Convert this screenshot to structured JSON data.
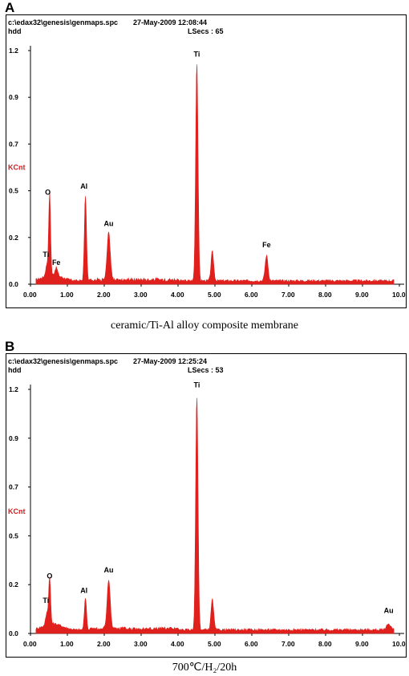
{
  "chart_data": [
    {
      "panel": "A",
      "type": "area",
      "path": "c:\\edax32\\genesis\\genmaps.spc",
      "date_time": "27-May-2009 12:08:44",
      "detector": "hdd",
      "lsecs": "LSecs : 65",
      "ylabel": "KCnt",
      "xlim": [
        0,
        10
      ],
      "ylim": [
        0,
        1.2
      ],
      "x_ticks": [
        "0.00",
        "1.00",
        "2.00",
        "3.00",
        "4.00",
        "5.00",
        "6.00",
        "7.00",
        "8.00",
        "9.00",
        "10.0"
      ],
      "y_ticks": [
        "0.0",
        "0.2",
        "0.5",
        "0.7",
        "0.9",
        "1.2"
      ],
      "y_tick_values": [
        0,
        0.24,
        0.48,
        0.72,
        0.96,
        1.2
      ],
      "color": "#e0201c",
      "peaks": [
        {
          "element": "O",
          "x": 0.52,
          "y": 0.42,
          "w": 0.035
        },
        {
          "element": "Ti",
          "x": 0.45,
          "y": 0.06,
          "w": 0.05
        },
        {
          "element": "Fe",
          "x": 0.7,
          "y": 0.04,
          "w": 0.05
        },
        {
          "element": "Al",
          "x": 1.49,
          "y": 0.44,
          "w": 0.04
        },
        {
          "element": "Au",
          "x": 2.12,
          "y": 0.24,
          "w": 0.06
        },
        {
          "element": "Ti",
          "x": 4.51,
          "y": 1.13,
          "w": 0.045
        },
        {
          "element": "Ti",
          "x": 4.93,
          "y": 0.15,
          "w": 0.05
        },
        {
          "element": "Fe",
          "x": 6.4,
          "y": 0.13,
          "w": 0.055
        }
      ],
      "peak_labels": [
        {
          "text": "O",
          "x": 0.47,
          "y": 0.46
        },
        {
          "text": "Ti",
          "x": 0.42,
          "y": 0.14
        },
        {
          "text": "Fe",
          "x": 0.7,
          "y": 0.1
        },
        {
          "text": "Al",
          "x": 1.45,
          "y": 0.49
        },
        {
          "text": "Au",
          "x": 2.12,
          "y": 0.3
        },
        {
          "text": "Ti",
          "x": 4.51,
          "y": 1.17
        },
        {
          "text": "Fe",
          "x": 6.4,
          "y": 0.19
        }
      ]
    },
    {
      "panel": "B",
      "type": "area",
      "path": "c:\\edax32\\genesis\\genmaps.spc",
      "date_time": "27-May-2009 12:25:24",
      "detector": "hdd",
      "lsecs": "LSecs : 53",
      "ylabel": "KCnt",
      "xlim": [
        0,
        10
      ],
      "ylim": [
        0,
        1.2
      ],
      "x_ticks": [
        "0.00",
        "1.00",
        "2.00",
        "3.00",
        "4.00",
        "5.00",
        "6.00",
        "7.00",
        "8.00",
        "9.00",
        "10.0"
      ],
      "y_ticks": [
        "0.0",
        "0.2",
        "0.5",
        "0.7",
        "0.9",
        "1.2"
      ],
      "y_tick_values": [
        0,
        0.24,
        0.48,
        0.72,
        0.96,
        1.2
      ],
      "color": "#e0201c",
      "peaks": [
        {
          "element": "O",
          "x": 0.52,
          "y": 0.23,
          "w": 0.035
        },
        {
          "element": "Ti",
          "x": 0.45,
          "y": 0.06,
          "w": 0.05
        },
        {
          "element": "Al",
          "x": 1.49,
          "y": 0.16,
          "w": 0.04
        },
        {
          "element": "Au",
          "x": 2.12,
          "y": 0.24,
          "w": 0.06
        },
        {
          "element": "Ti",
          "x": 4.51,
          "y": 1.16,
          "w": 0.045
        },
        {
          "element": "Ti",
          "x": 4.93,
          "y": 0.15,
          "w": 0.05
        },
        {
          "element": "Au",
          "x": 9.71,
          "y": 0.03,
          "w": 0.08
        }
      ],
      "peak_labels": [
        {
          "text": "O",
          "x": 0.52,
          "y": 0.27
        },
        {
          "text": "Ti",
          "x": 0.42,
          "y": 0.15
        },
        {
          "text": "Al",
          "x": 1.45,
          "y": 0.2
        },
        {
          "text": "Au",
          "x": 2.12,
          "y": 0.3
        },
        {
          "text": "Ti",
          "x": 4.51,
          "y": 1.21
        },
        {
          "text": "Au",
          "x": 9.71,
          "y": 0.1
        }
      ]
    }
  ],
  "panels": [
    {
      "letter": "A",
      "caption": "ceramic/Ti-Al alloy composite membrane"
    },
    {
      "letter": "B",
      "caption": "700℃/H₂/20h"
    }
  ]
}
